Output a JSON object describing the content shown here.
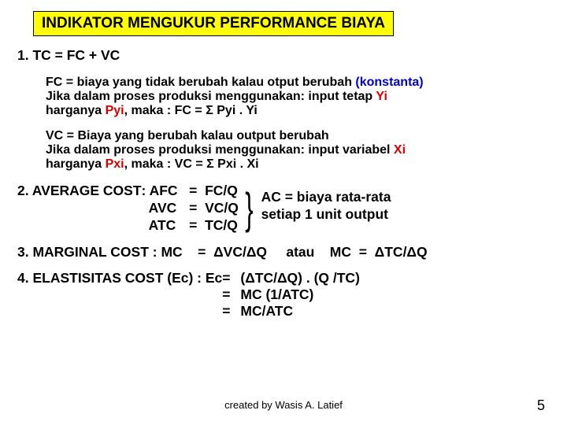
{
  "title": "INDIKATOR MENGUKUR PERFORMANCE BIAYA",
  "item1": {
    "label": "1. TC  =  FC  +  VC"
  },
  "fc": {
    "line1a": "FC = biaya yang tidak berubah kalau otput berubah ",
    "line1b": "(konstanta)",
    "line2a": "Jika dalam proses produksi menggunakan: input tetap ",
    "line2b": "Yi",
    "line3a": "harganya ",
    "line3b": "Pyi",
    "line3c": ", maka : FC  =  Σ Pyi . Yi"
  },
  "vc": {
    "line1": "VC = Biaya yang berubah kalau output berubah",
    "line2a": "Jika dalam proses produksi menggunakan: input variabel ",
    "line2b": "Xi",
    "line3a": "harganya ",
    "line3b": "Pxi",
    "line3c": ", maka : VC  =  Σ Pxi . Xi"
  },
  "avg": {
    "lead": "2. AVERAGE COST   ",
    "c1l1": ": AFC",
    "c1l2": "  AVC",
    "c1l3": "  ATC",
    "c2l1": "   =  ",
    "c2l2": "   =  ",
    "c2l3": "   =  ",
    "c3l1": "FC/Q",
    "c3l2": "VC/Q",
    "c3l3": "TC/Q",
    "note1": "AC = biaya rata-rata",
    "note2": "setiap 1 unit output"
  },
  "mc": {
    "lead": "3. MARGINAL COST : MC    =  ",
    "val": "ΔVC/ΔQ",
    "atau": "     atau    ",
    "tail": "MC  =  ΔTC/ΔQ"
  },
  "ec": {
    "lead": "4. ELASTISITAS COST (Ec)  :  Ec  ",
    "eq": "= ",
    "v1": "(ΔTC/ΔQ) . (Q /TC)",
    "v2": "MC (1/ATC)",
    "v3": "MC/ATC"
  },
  "footer": "created by Wasis A. Latief",
  "page": "5"
}
